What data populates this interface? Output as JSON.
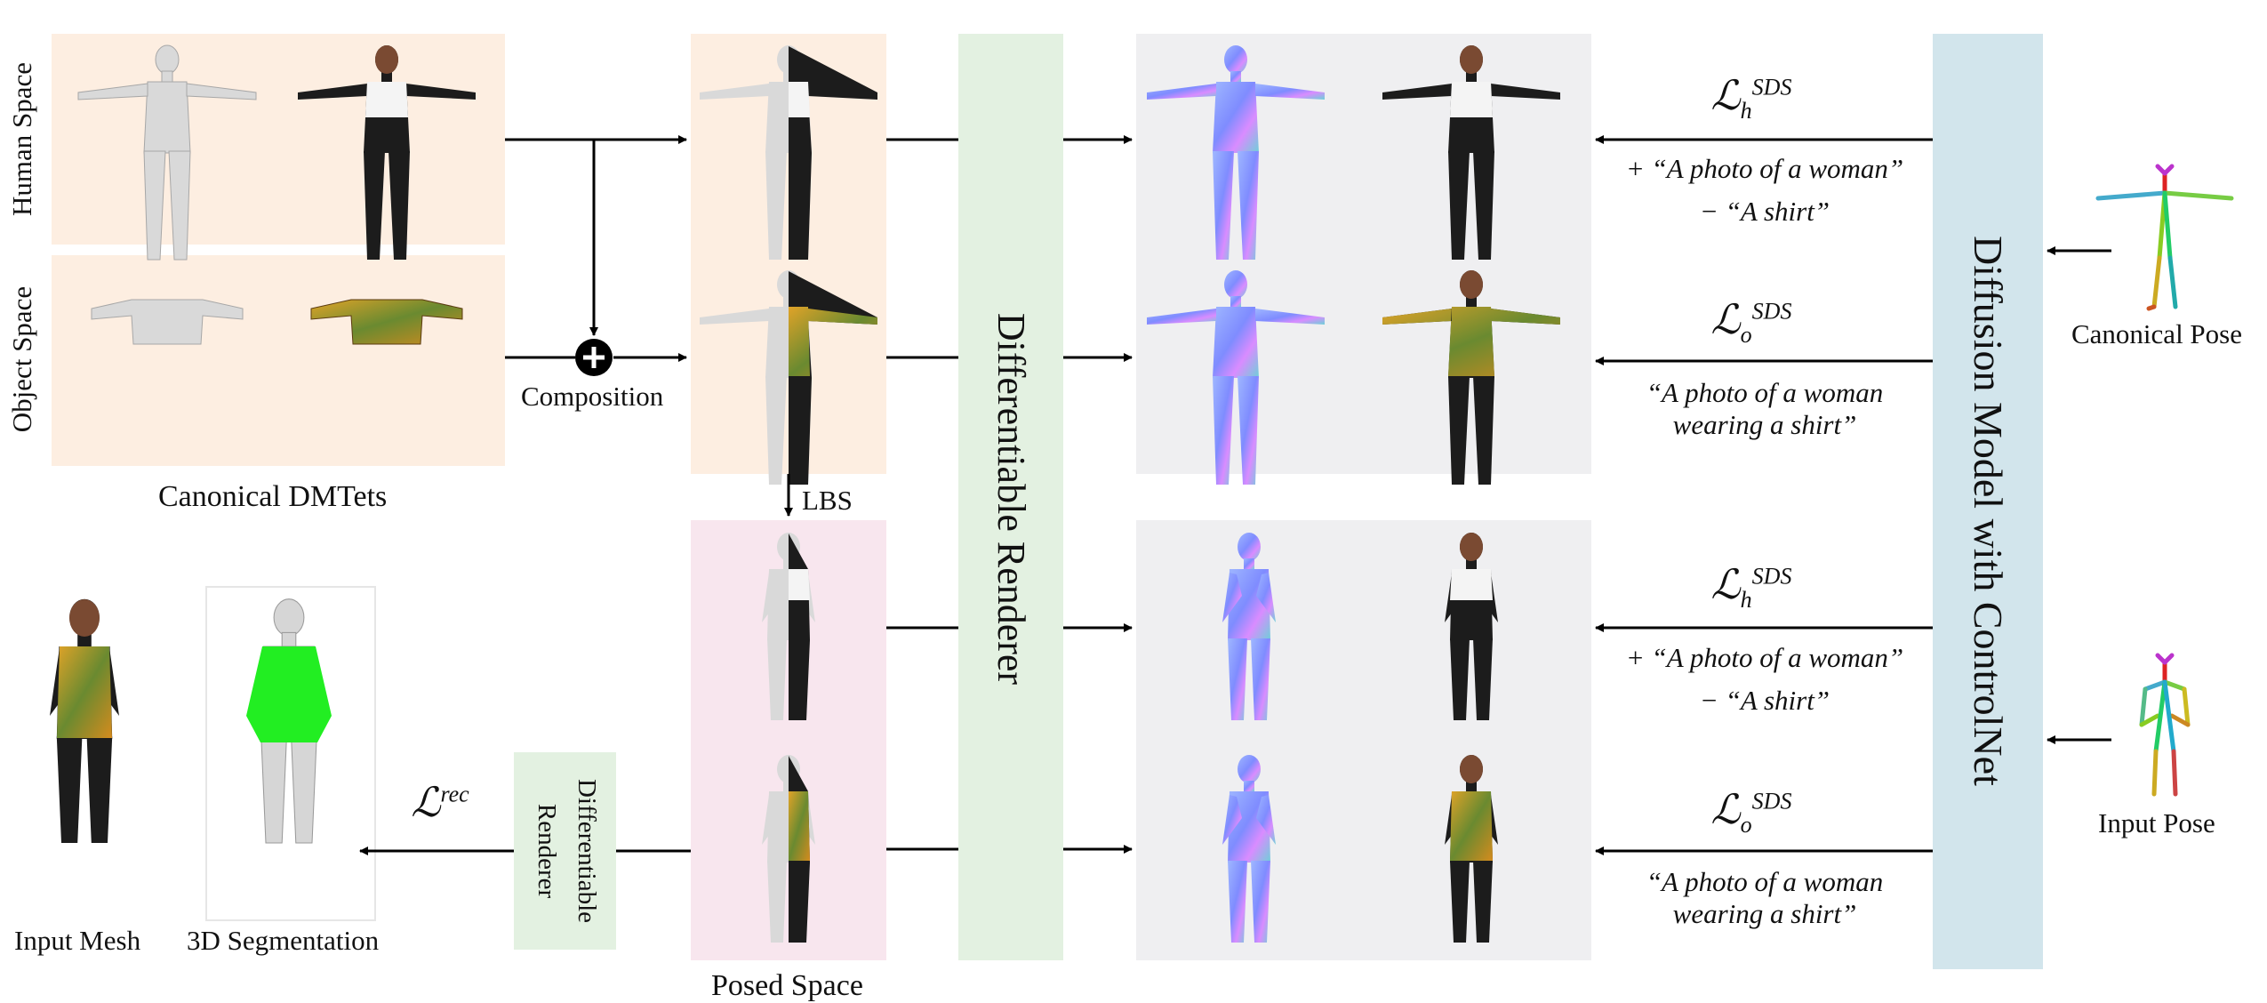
{
  "labels": {
    "human_space": "Human Space",
    "object_space": "Object Space",
    "canonical_dmtets": "Canonical DMTets",
    "composition": "Composition",
    "lbs": "LBS",
    "posed_space": "Posed Space",
    "input_mesh": "Input Mesh",
    "segmentation_3d": "3D Segmentation",
    "diff_renderer_main": "Differentiable Renderer",
    "diff_renderer_small_1": "Differentiable",
    "diff_renderer_small_2": "Renderer",
    "diffusion_model": "Diffusion Model with ControlNet",
    "canonical_pose": "Canonical Pose",
    "input_pose": "Input Pose",
    "loss_rec": "ℒ",
    "loss_rec_sup": "rec"
  },
  "losses": {
    "symbol": "ℒ",
    "sds": "SDS",
    "h": "h",
    "o": "o"
  },
  "prompts": {
    "human_plus": "+ “A photo of a woman”",
    "human_minus": "− “A shirt”",
    "object_line1": "“A photo of a woman",
    "object_line2": "wearing a shirt”"
  },
  "colors": {
    "canonical_bg": "#fdeee1",
    "posed_bg": "#f8e6ee",
    "renderer_bg": "#e3f1e1",
    "output_bg": "#efeff1",
    "diffusion_bg": "#d2e5ec",
    "segmentation_green": "#22ee22"
  }
}
